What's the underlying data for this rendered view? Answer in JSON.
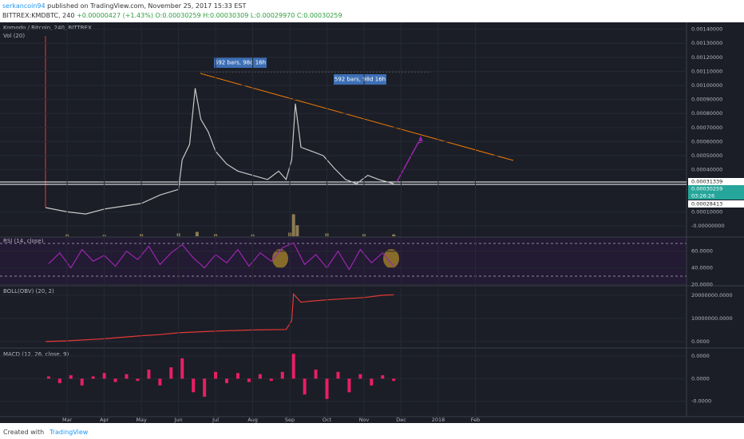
{
  "header": {
    "author": "serkancoin94",
    "published": "published on TradingView.com, November 25, 2017 15:33 EST",
    "symbol": "BITTREX:KMDBTC, 240",
    "open": "O:0.00030259",
    "high": "H:0.00030309",
    "low": "L:0.00029970",
    "close": "C:0.00030259",
    "change": "+0.00000427 (+1.43%)"
  },
  "footer": {
    "created": "Created with",
    "brand": "TradingView"
  },
  "chart_data": [
    {
      "type": "line",
      "title": "Komodo / Bitcoin, 240, BITTREX",
      "color": "#c8c8c8",
      "x": [
        2.42,
        3,
        3.5,
        4,
        4.5,
        5,
        5.5,
        6,
        6.1,
        6.3,
        6.45,
        6.6,
        6.8,
        7,
        7.3,
        7.6,
        8,
        8.4,
        8.7,
        8.9,
        9.05,
        9.15,
        9.3,
        9.6,
        9.9,
        10.2,
        10.5,
        10.8,
        11.1,
        11.4,
        11.8
      ],
      "values": [
        0.00013,
        0.0001,
        8.5e-05,
        0.00012,
        0.00014,
        0.00016,
        0.00022,
        0.00026,
        0.00047,
        0.00058,
        0.00098,
        0.00076,
        0.00067,
        0.00053,
        0.00044,
        0.00039,
        0.00036,
        0.00033,
        0.00039,
        0.00033,
        0.00047,
        0.00087,
        0.00056,
        0.00053,
        0.0005,
        0.00041,
        0.00033,
        0.0003,
        0.00036,
        0.00033,
        0.0003
      ],
      "xlim": [
        1.19,
        19.69
      ],
      "ylim": [
        -5.1e-05,
        0.001449
      ],
      "yticks": [
        {
          "value": 0.0014,
          "label": "0.00140000"
        },
        {
          "value": 0.0013,
          "label": "0.00130000"
        },
        {
          "value": 0.0012,
          "label": "0.00120000"
        },
        {
          "value": 0.0011,
          "label": "0.00110000"
        },
        {
          "value": 0.001,
          "label": "0.00100000"
        },
        {
          "value": 0.0009,
          "label": "0.00090000"
        },
        {
          "value": 0.0008,
          "label": "0.00080000"
        },
        {
          "value": 0.0007,
          "label": "0.00070000"
        },
        {
          "value": 0.0006,
          "label": "0.00060000"
        },
        {
          "value": 0.0005,
          "label": "0.00050000"
        },
        {
          "value": 0.0004,
          "label": "0.00040000"
        },
        {
          "value": 0.0001,
          "label": "0.00010000"
        },
        {
          "value": 0,
          "label": "-0.00000000"
        }
      ],
      "annotations": [
        "592 bars, 98d 16h",
        "592 bars, 98d 16h"
      ],
      "price_labels": [
        "0.00031339",
        "0.00030259",
        "03:26:26",
        "0.00028413"
      ]
    },
    {
      "type": "bar",
      "title": "Vol (20)",
      "color": "#8d7b52",
      "x": [
        3,
        4,
        5,
        6,
        6.5,
        7,
        8,
        9,
        9.1,
        9.2,
        10,
        11,
        11.8
      ],
      "values": [
        5,
        4,
        6,
        8,
        12,
        6,
        5,
        10,
        60,
        30,
        8,
        6,
        5
      ],
      "xlim": [
        1.19,
        19.69
      ],
      "ylim": [
        0,
        100
      ],
      "yticks": []
    },
    {
      "type": "line",
      "title": "RSI (14, close)",
      "color": "#9c27b0",
      "x": [
        2.5,
        2.8,
        3.1,
        3.4,
        3.7,
        4.0,
        4.3,
        4.6,
        4.9,
        5.2,
        5.5,
        5.8,
        6.1,
        6.4,
        6.7,
        7.0,
        7.3,
        7.6,
        7.9,
        8.2,
        8.5,
        8.8,
        9.1,
        9.4,
        9.7,
        10.0,
        10.3,
        10.6,
        10.9,
        11.2,
        11.5,
        11.8
      ],
      "values": [
        45,
        58,
        40,
        62,
        48,
        55,
        42,
        60,
        50,
        66,
        44,
        58,
        68,
        52,
        40,
        56,
        46,
        62,
        42,
        58,
        48,
        64,
        70,
        44,
        56,
        40,
        60,
        38,
        62,
        46,
        58,
        42
      ],
      "xlim": [
        1.19,
        19.69
      ],
      "ylim": [
        19.5,
        76
      ],
      "yticks": [
        {
          "value": 60,
          "label": "60.0000"
        },
        {
          "value": 40,
          "label": "40.0000"
        },
        {
          "value": 20,
          "label": "20.0000"
        }
      ]
    },
    {
      "type": "line",
      "title": "BOLL(OBV) (20, 2)",
      "color": "#e53935",
      "x": [
        2.42,
        3,
        4,
        5,
        5.5,
        6,
        7,
        8,
        8.9,
        9.05,
        9.1,
        9.3,
        9.6,
        10,
        10.5,
        11,
        11.5,
        11.8
      ],
      "values": [
        0,
        300000,
        1200000,
        2500000,
        3000000,
        3800000,
        4500000,
        5000000,
        5200000,
        9000000,
        20500000,
        17000000,
        17500000,
        18000000,
        18500000,
        19000000,
        20000000,
        20200000
      ],
      "xlim": [
        1.19,
        19.69
      ],
      "ylim": [
        -2800000,
        23400000
      ],
      "yticks": [
        {
          "value": 20000000,
          "label": "20000000.0000"
        },
        {
          "value": 10000000,
          "label": "10000000.0000"
        },
        {
          "value": 0,
          "label": "0.0000"
        }
      ]
    },
    {
      "type": "bar",
      "title": "MACD (12, 26, close, 9)",
      "color": "#e91e63",
      "x": [
        2.5,
        2.8,
        3.1,
        3.4,
        3.7,
        4.0,
        4.3,
        4.6,
        4.9,
        5.2,
        5.5,
        5.8,
        6.1,
        6.4,
        6.7,
        7.0,
        7.3,
        7.6,
        7.9,
        8.2,
        8.5,
        8.8,
        9.1,
        9.4,
        9.7,
        10.0,
        10.3,
        10.6,
        10.9,
        11.2,
        11.5,
        11.8
      ],
      "values": [
        2e-06,
        -4e-06,
        3e-06,
        -6e-06,
        2e-06,
        5e-06,
        -3e-06,
        4e-06,
        -2e-06,
        8e-06,
        -6e-06,
        1e-05,
        1.8e-05,
        -1.2e-05,
        -1.6e-05,
        6e-06,
        -4e-06,
        5e-06,
        -3e-06,
        4e-06,
        -2e-06,
        6e-06,
        2.2e-05,
        -1.4e-05,
        8e-06,
        -1.8e-05,
        6e-06,
        -1.2e-05,
        4e-06,
        -6e-06,
        3e-06,
        -2e-06
      ],
      "xlim": [
        1.19,
        19.69
      ],
      "ylim": [
        -3.36e-05,
        2.64e-05
      ],
      "yticks": [
        {
          "value": 2e-05,
          "label": "0.0000"
        },
        {
          "value": 0,
          "label": "0.0000"
        },
        {
          "value": -2e-05,
          "label": "-0.0000"
        }
      ],
      "xticks": [
        {
          "value": 3,
          "label": "Mar"
        },
        {
          "value": 4,
          "label": "Apr"
        },
        {
          "value": 5,
          "label": "May"
        },
        {
          "value": 6,
          "label": "Jun"
        },
        {
          "value": 7,
          "label": "Jul"
        },
        {
          "value": 8,
          "label": "Aug"
        },
        {
          "value": 9,
          "label": "Sep"
        },
        {
          "value": 10,
          "label": "Oct"
        },
        {
          "value": 11,
          "label": "Nov"
        },
        {
          "value": 12,
          "label": "Dec"
        },
        {
          "value": 13,
          "label": "2018"
        },
        {
          "value": 14,
          "label": "Feb"
        }
      ]
    }
  ]
}
